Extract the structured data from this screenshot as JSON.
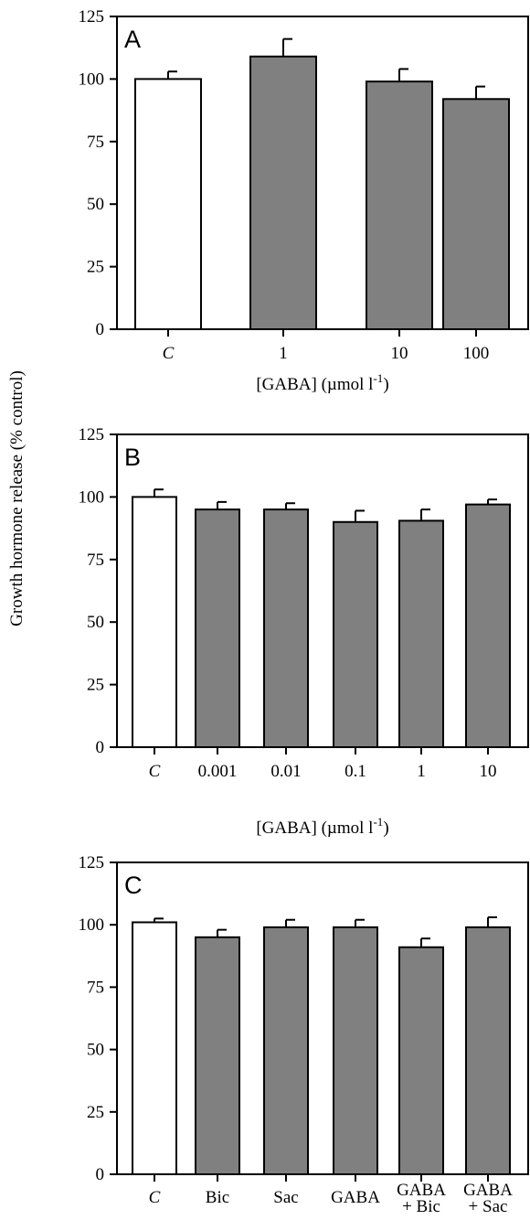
{
  "figure": {
    "y_axis_label": "Growth hormone release (% control)"
  },
  "chart_data": [
    {
      "type": "bar",
      "panel": "A",
      "categories": [
        "C",
        "1",
        "10",
        "100"
      ],
      "values": [
        100,
        109,
        99,
        92
      ],
      "errors": [
        3,
        7,
        5,
        5
      ],
      "bar_colors": [
        "#ffffff",
        "#808080",
        "#808080",
        "#808080"
      ],
      "xlabel": "[GABA] (µmol l⁻¹)",
      "ylabel": "",
      "ylim": [
        0,
        125
      ],
      "yticks": [
        0,
        25,
        50,
        75,
        100,
        125
      ],
      "grid": false
    },
    {
      "type": "bar",
      "panel": "B",
      "categories": [
        "C",
        "0.001",
        "0.01",
        "0.1",
        "1",
        "10"
      ],
      "values": [
        100,
        95,
        95,
        90,
        90.5,
        97
      ],
      "errors": [
        3,
        3,
        2.5,
        4.5,
        4.5,
        2
      ],
      "bar_colors": [
        "#ffffff",
        "#808080",
        "#808080",
        "#808080",
        "#808080",
        "#808080"
      ],
      "xlabel": "[GABA] (µmol l⁻¹)",
      "ylabel": "",
      "ylim": [
        0,
        125
      ],
      "yticks": [
        0,
        25,
        50,
        75,
        100,
        125
      ],
      "grid": false
    },
    {
      "type": "bar",
      "panel": "C",
      "categories": [
        "C",
        "Bic",
        "Sac",
        "GABA",
        "GABA\n+ Bic",
        "GABA\n+ Sac"
      ],
      "values": [
        101,
        95,
        99,
        99,
        91,
        99
      ],
      "errors": [
        1.5,
        3,
        3,
        3,
        3.5,
        4
      ],
      "bar_colors": [
        "#ffffff",
        "#808080",
        "#808080",
        "#808080",
        "#808080",
        "#808080"
      ],
      "xlabel": "",
      "ylabel": "",
      "ylim": [
        0,
        125
      ],
      "yticks": [
        0,
        25,
        50,
        75,
        100,
        125
      ],
      "grid": false
    }
  ]
}
